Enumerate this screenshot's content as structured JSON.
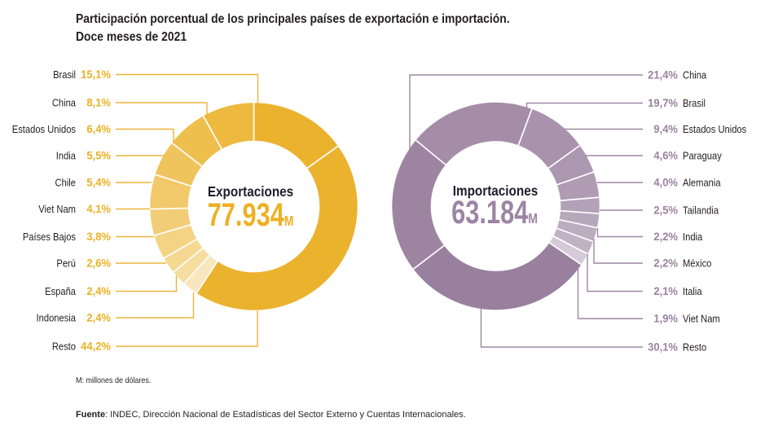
{
  "title": {
    "line1": "Participación porcentual de los principales países de exportación e importación.",
    "line2": "Doce meses de 2021"
  },
  "chart_data": [
    {
      "type": "pie",
      "variant": "donut",
      "title": "Exportaciones",
      "total": "77.934",
      "total_unit": "M",
      "categories": [
        "Brasil",
        "China",
        "Estados Unidos",
        "India",
        "Chile",
        "Viet Nam",
        "Países Bajos",
        "Perú",
        "España",
        "Indonesia",
        "Resto"
      ],
      "values": [
        15.1,
        8.1,
        6.4,
        5.5,
        5.4,
        4.1,
        3.8,
        2.6,
        2.4,
        2.4,
        44.2
      ],
      "value_labels": [
        "15,1%",
        "8,1%",
        "6,4%",
        "5,5%",
        "5,4%",
        "4,1%",
        "3,8%",
        "2,6%",
        "2,4%",
        "2,4%",
        "44,2%"
      ],
      "unit": "%",
      "colors": [
        "#EBB22E",
        "#EDBA3F",
        "#EFBF4E",
        "#F0C45C",
        "#F1C96A",
        "#F2CD78",
        "#F4D385",
        "#F5D892",
        "#F6DDA0",
        "#F8E6BE",
        "#EBB22E"
      ],
      "label_color": "#EDB124",
      "line_color": "#EDB43A",
      "accent_color": "#EDB124",
      "legend_placement": "left"
    },
    {
      "type": "pie",
      "variant": "donut",
      "title": "Importaciones",
      "total": "63.184",
      "total_unit": "M",
      "categories": [
        "China",
        "Brasil",
        "Estados Unidos",
        "Paraguay",
        "Alemania",
        "Tailandia",
        "India",
        "México",
        "Italia",
        "Viet Nam",
        "Resto"
      ],
      "values": [
        21.4,
        19.7,
        9.4,
        4.6,
        4.0,
        2.5,
        2.2,
        2.2,
        2.1,
        1.9,
        30.1
      ],
      "value_labels": [
        "21,4%",
        "19,7%",
        "9,4%",
        "4,6%",
        "4,0%",
        "2,5%",
        "2,2%",
        "2,2%",
        "2,1%",
        "1,9%",
        "30,1%"
      ],
      "unit": "%",
      "colors": [
        "#9D85A1",
        "#A58DA8",
        "#A892AC",
        "#AC97B0",
        "#AF9CB3",
        "#B3A1B7",
        "#B7A7BB",
        "#BBACBF",
        "#C0B2C4",
        "#D4CAD8",
        "#98809E"
      ],
      "label_color": "#9A82A0",
      "line_color": "#9D87A3",
      "accent_color": "#9C84A3",
      "legend_placement": "right"
    }
  ],
  "notes": {
    "unit": "M: millones de dólares.",
    "source_label": "Fuente",
    "source_text": ": INDEC, Dirección Nacional de Estadísticas del Sector Externo y Cuentas Internacionales."
  }
}
